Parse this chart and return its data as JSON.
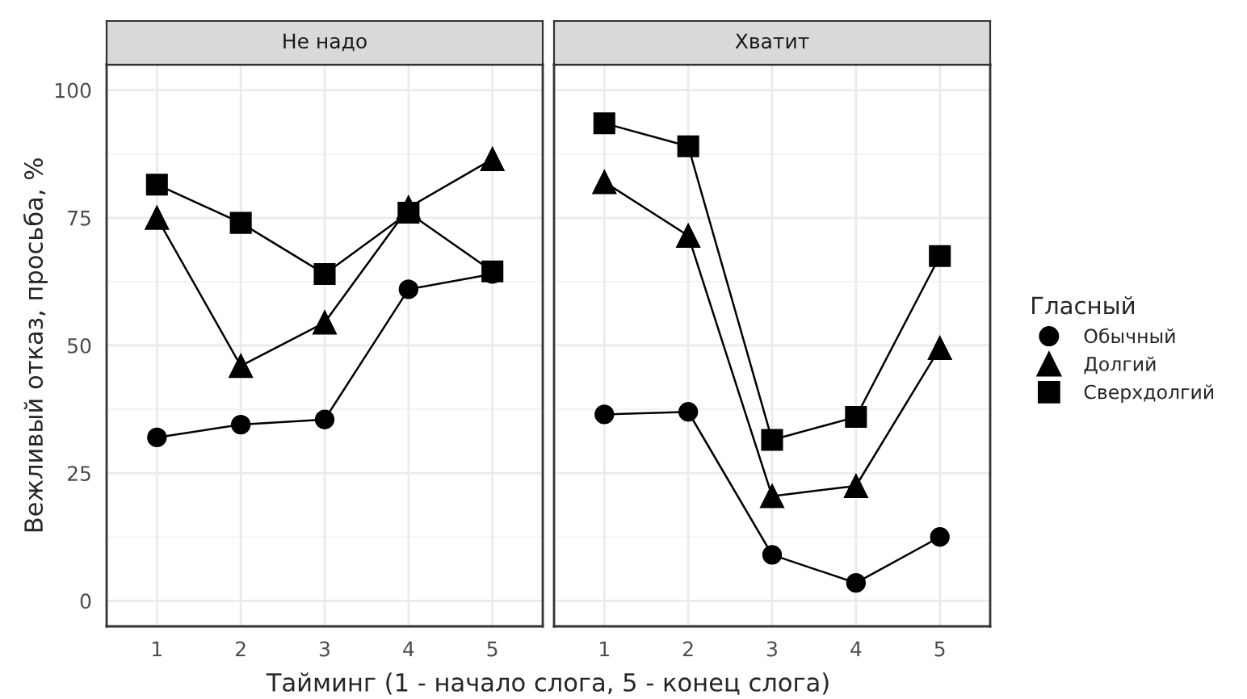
{
  "chart_data": [
    {
      "type": "line",
      "title": "Не надо",
      "xlabel": "Тайминг (1 - начало слога, 5 - конец слога)",
      "ylabel": "Вежливый отказ, просьба, %",
      "x": [
        1,
        2,
        3,
        4,
        5
      ],
      "xlim": [
        0.4,
        5.6
      ],
      "xticks": [
        1,
        2,
        3,
        4,
        5
      ],
      "ylim": [
        -5,
        105
      ],
      "yticks": [
        0,
        25,
        50,
        75,
        100
      ],
      "grid": true,
      "legend": "right",
      "legend_title": "Гласный",
      "series": [
        {
          "name": "Обычный",
          "color": "#000000",
          "marker": "circle",
          "values": [
            32,
            34.5,
            35.5,
            61,
            64
          ]
        },
        {
          "name": "Долгий",
          "color": "#000000",
          "marker": "triangle",
          "values": [
            75,
            46,
            54.5,
            77,
            86.5
          ]
        },
        {
          "name": "Сверхдолгий",
          "color": "#000000",
          "marker": "square",
          "values": [
            81.5,
            74,
            64,
            76,
            64.5
          ]
        }
      ]
    },
    {
      "type": "line",
      "title": "Хватит",
      "x": [
        1,
        2,
        3,
        4,
        5
      ],
      "xlim": [
        0.4,
        5.6
      ],
      "xticks": [
        1,
        2,
        3,
        4,
        5
      ],
      "ylim": [
        -5,
        105
      ],
      "yticks": [
        0,
        25,
        50,
        75,
        100
      ],
      "tick_labels": "x",
      "grid": true,
      "series": [
        {
          "color": "#000000",
          "marker": "circle",
          "values": [
            36.5,
            37,
            9,
            3.5,
            12.5
          ]
        },
        {
          "color": "#000000",
          "marker": "triangle",
          "values": [
            82,
            71.5,
            20.5,
            22.5,
            49.5
          ]
        },
        {
          "color": "#000000",
          "marker": "square",
          "values": [
            93.5,
            89,
            31.5,
            36,
            67.5
          ]
        }
      ]
    }
  ]
}
